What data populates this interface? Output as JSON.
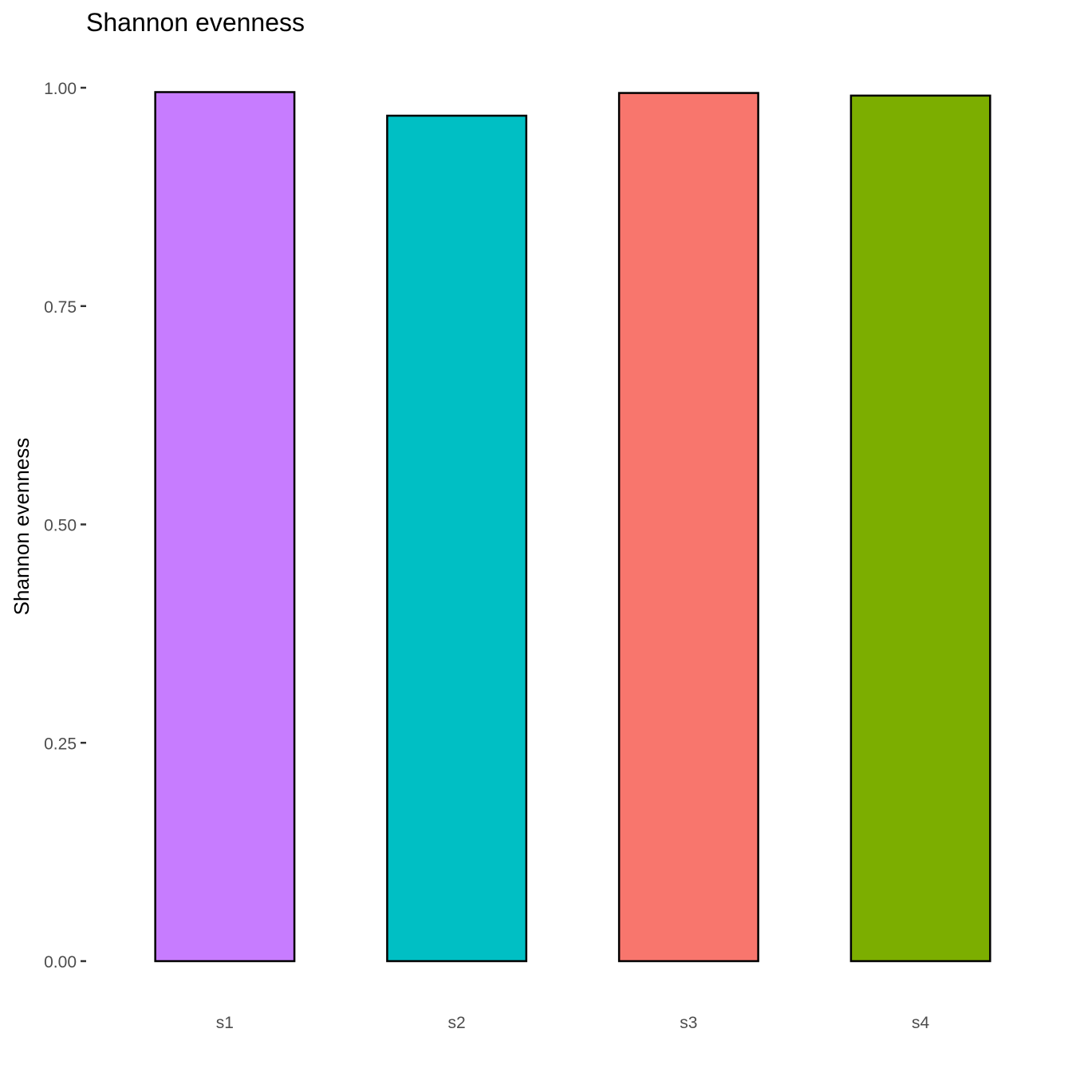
{
  "chart_data": {
    "type": "bar",
    "title": "Shannon evenness",
    "xlabel": "",
    "ylabel": "Shannon evenness",
    "categories": [
      "s1",
      "s2",
      "s3",
      "s4"
    ],
    "values": [
      0.995,
      0.968,
      0.994,
      0.991
    ],
    "colors": [
      "#C77CFF",
      "#00BFC4",
      "#F8766D",
      "#7CAE00"
    ],
    "bar_outline": "#000000",
    "ylim": [
      0,
      1.0
    ],
    "yticks": [
      0.0,
      0.25,
      0.5,
      0.75,
      1.0
    ],
    "ytick_labels": [
      "0.00",
      "0.25",
      "0.50",
      "0.75",
      "1.00"
    ],
    "grid": false,
    "legend": "none"
  }
}
